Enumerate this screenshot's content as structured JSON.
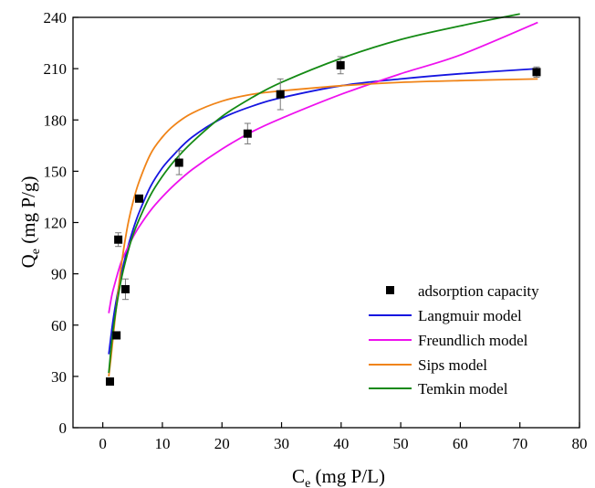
{
  "chart_data": {
    "type": "scatter",
    "xlabel_main": "C",
    "xlabel_sub": "e",
    "xlabel_rest": " (mg P/L)",
    "ylabel_main": "Q",
    "ylabel_sub": "e",
    "ylabel_rest": " (mg P/g)",
    "xlim": [
      -5,
      80
    ],
    "ylim": [
      0,
      240
    ],
    "xticks": [
      0,
      10,
      20,
      30,
      40,
      50,
      60,
      70,
      80
    ],
    "yticks": [
      0,
      30,
      60,
      90,
      120,
      150,
      180,
      210,
      240
    ],
    "grid": false,
    "legend_position": "bottom-right",
    "points": {
      "name": "adsorption capacity",
      "color": "#000000",
      "marker": "square",
      "x": [
        1.2,
        2.3,
        2.6,
        3.8,
        6.1,
        12.8,
        24.3,
        29.8,
        39.9,
        72.8
      ],
      "y": [
        27,
        54,
        110,
        81,
        134,
        155,
        172,
        195,
        212,
        208
      ],
      "error": [
        2,
        2,
        4,
        6,
        2,
        7,
        6,
        9,
        5,
        3
      ]
    },
    "series": [
      {
        "name": "Langmuir model",
        "color": "#1515e0",
        "x": [
          1.0,
          1.5,
          2.0,
          3.0,
          4.0,
          5.0,
          6.0,
          8.0,
          10.0,
          12.0,
          15.0,
          20.0,
          25.0,
          30.0,
          40.0,
          50.0,
          60.0,
          73.0
        ],
        "y": [
          43,
          57,
          69,
          88,
          103,
          115,
          125,
          141,
          152,
          160,
          170,
          181,
          188,
          193,
          200,
          204,
          207,
          210
        ]
      },
      {
        "name": "Freundlich model",
        "color": "#ee11ee",
        "x": [
          1.0,
          1.5,
          2.0,
          3.0,
          4.0,
          5.0,
          6.0,
          8.0,
          10.0,
          12.0,
          15.0,
          20.0,
          25.0,
          30.0,
          40.0,
          50.0,
          60.0,
          73.0
        ],
        "y": [
          67,
          77,
          84,
          96,
          104,
          111,
          117,
          127,
          135,
          142,
          151,
          163,
          173,
          181,
          195,
          207,
          218,
          237
        ]
      },
      {
        "name": "Sips model",
        "color": "#f08418",
        "x": [
          1.0,
          1.5,
          2.0,
          3.0,
          4.0,
          5.0,
          6.0,
          8.0,
          10.0,
          12.0,
          15.0,
          20.0,
          25.0,
          30.0,
          40.0,
          50.0,
          60.0,
          73.0
        ],
        "y": [
          30,
          45,
          62,
          92,
          115,
          131,
          143,
          160,
          170,
          177,
          184,
          191,
          195,
          197,
          200,
          202,
          203,
          204
        ]
      },
      {
        "name": "Temkin model",
        "color": "#148a14",
        "x": [
          1.0,
          1.5,
          2.0,
          3.0,
          4.0,
          5.0,
          6.0,
          8.0,
          10.0,
          12.0,
          15.0,
          20.0,
          25.0,
          30.0,
          40.0,
          50.0,
          60.0,
          70.0
        ],
        "y": [
          32,
          50,
          64,
          85,
          100,
          112,
          121,
          136,
          147,
          156,
          167,
          182,
          193,
          202,
          216,
          227,
          235,
          242
        ]
      }
    ]
  }
}
